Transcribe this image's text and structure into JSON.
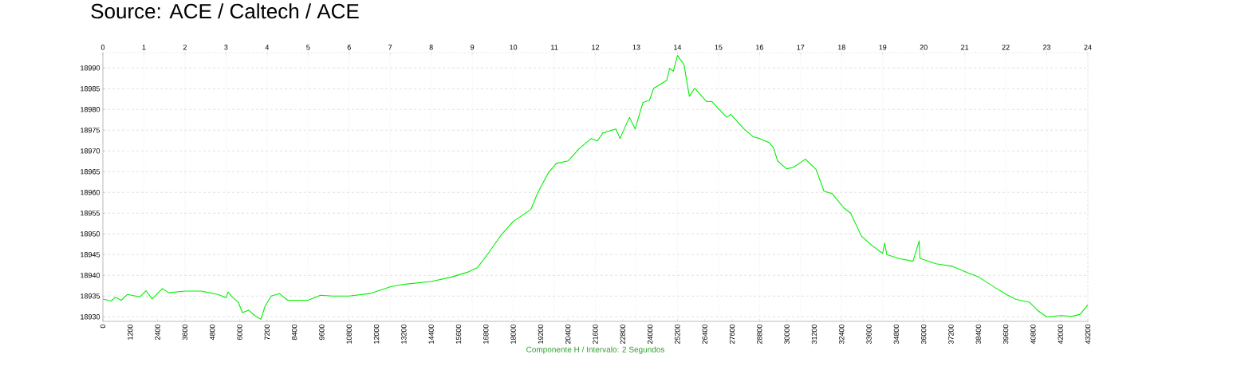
{
  "chart_data": {
    "type": "line",
    "xlabel": "Componente H / Intervalo: 2 Segundos",
    "annotations": [
      "Source: ACE / Caltech / ACE"
    ],
    "xlim": [
      0,
      43200
    ],
    "xticks": [
      0,
      1200,
      2400,
      3600,
      4800,
      6000,
      7200,
      8400,
      9600,
      10800,
      12000,
      13200,
      14400,
      15600,
      16800,
      18000,
      19200,
      20400,
      21600,
      22800,
      24000,
      25200,
      26400,
      27600,
      28800,
      30000,
      31200,
      32400,
      33600,
      34800,
      36000,
      37200,
      38400,
      39600,
      40800,
      42000,
      43200
    ],
    "x2lim": [
      0,
      24
    ],
    "x2ticks": [
      0,
      1,
      2,
      3,
      4,
      5,
      6,
      7,
      8,
      9,
      10,
      11,
      12,
      13,
      14,
      15,
      16,
      17,
      18,
      19,
      20,
      21,
      22,
      23,
      24
    ],
    "ylim": [
      18928.9,
      18993.7
    ],
    "yticks": [
      18930,
      18935,
      18940,
      18945,
      18950,
      18955,
      18960,
      18965,
      18970,
      18975,
      18980,
      18985,
      18990
    ],
    "grid": true,
    "series": [
      {
        "color": "#00f000",
        "x": [
          0,
          360,
          540,
          810,
          1080,
          1620,
          1890,
          2160,
          2610,
          2880,
          3600,
          4320,
          5040,
          5400,
          5490,
          5670,
          5940,
          6120,
          6390,
          6660,
          6930,
          7110,
          7380,
          7740,
          8100,
          8640,
          9000,
          9540,
          10080,
          10800,
          11700,
          12600,
          13140,
          14400,
          15300,
          16020,
          16434,
          16902,
          17478,
          18000,
          18774,
          19080,
          19548,
          19890,
          20412,
          20880,
          21420,
          21690,
          21924,
          22500,
          22680,
          23094,
          23346,
          23688,
          23976,
          24156,
          24732,
          24858,
          25020,
          25200,
          25488,
          25722,
          25956,
          26478,
          26712,
          27360,
          27540,
          28116,
          28530,
          28800,
          29214,
          29412,
          29592,
          29988,
          30276,
          30816,
          31284,
          31626,
          31986,
          32508,
          32796,
          33264,
          33732,
          34200,
          34290,
          34380,
          34902,
          35532,
          35802,
          35838,
          36540,
          37242,
          37944,
          38412,
          39114,
          39690,
          40050,
          40644,
          40986,
          41382,
          42030,
          42498,
          42858,
          43200
        ],
        "values": [
          18934.3,
          18933.8,
          18934.7,
          18934.0,
          18935.4,
          18934.8,
          18936.3,
          18934.3,
          18936.8,
          18935.8,
          18936.2,
          18936.2,
          18935.4,
          18934.6,
          18936.0,
          18934.8,
          18933.5,
          18931.0,
          18931.6,
          18930.3,
          18929.4,
          18932.5,
          18935.0,
          18935.6,
          18934.0,
          18934.0,
          18934.0,
          18935.2,
          18935.0,
          18935.0,
          18935.6,
          18937.2,
          18937.8,
          18938.5,
          18939.6,
          18940.8,
          18941.9,
          18945.3,
          18949.8,
          18953.0,
          18955.9,
          18960.0,
          18964.8,
          18967.0,
          18967.6,
          18970.5,
          18973.0,
          18972.4,
          18974.3,
          18975.3,
          18973.0,
          18978.1,
          18975.3,
          18981.7,
          18982.2,
          18985.1,
          18987.0,
          18989.9,
          18989.2,
          18993.0,
          18990.8,
          18983.2,
          18985.1,
          18981.9,
          18981.9,
          18978.1,
          18978.8,
          18975.3,
          18973.4,
          18973.0,
          18972.0,
          18970.8,
          18967.6,
          18965.7,
          18966.0,
          18968.0,
          18965.5,
          18960.3,
          18959.7,
          18956.2,
          18955.0,
          18949.5,
          18947.2,
          18945.3,
          18947.8,
          18945.0,
          18944.1,
          18943.4,
          18948.3,
          18944.1,
          18942.8,
          18942.2,
          18940.6,
          18939.6,
          18937.1,
          18935.2,
          18934.2,
          18933.5,
          18931.6,
          18930.0,
          18930.3,
          18930.1,
          18930.6,
          18932.8
        ]
      }
    ]
  }
}
